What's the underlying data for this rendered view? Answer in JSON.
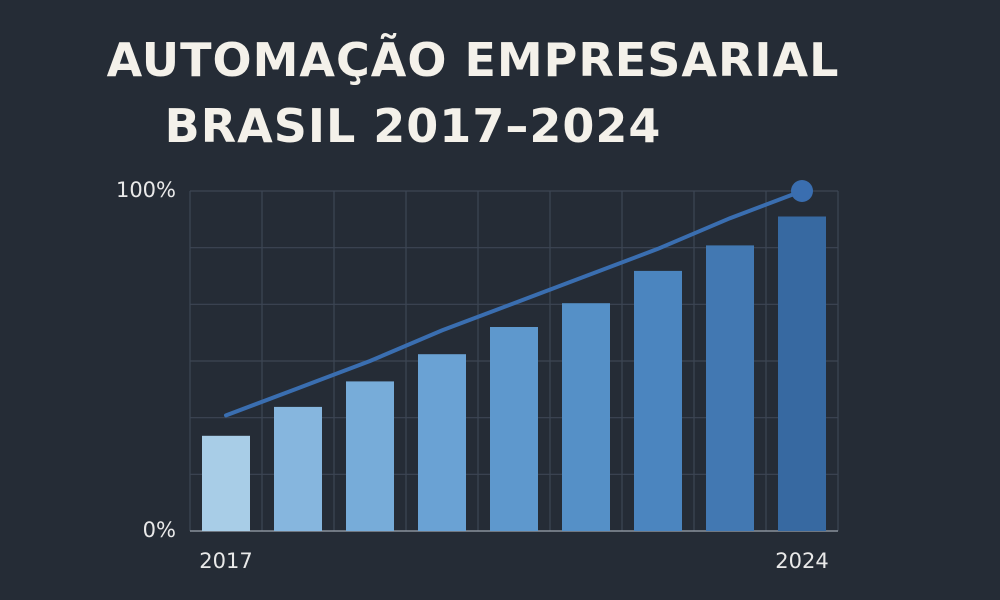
{
  "chart_data": {
    "type": "bar",
    "title": [
      "AUTOMAÇÃO EMPRESARIAL",
      "BRASIL 2017–2024"
    ],
    "categories": [
      "2017",
      null,
      null,
      null,
      null,
      null,
      null,
      null,
      "2024"
    ],
    "values": [
      28,
      36.5,
      44,
      52,
      60,
      67,
      76.5,
      84,
      92.5
    ],
    "colors": [
      "#a8cde7",
      "#86b6de",
      "#77acd9",
      "#6aa2d4",
      "#5e98cd",
      "#5590c7",
      "#4b85bf",
      "#4278b2",
      "#3769a1"
    ],
    "series": [
      {
        "type": "line",
        "color": "#3a6eb0",
        "values": [
          34,
          42,
          50,
          59,
          67,
          75,
          83,
          92,
          100
        ]
      }
    ],
    "ylim": [
      0,
      100
    ],
    "yticks": [
      {
        "value": 0,
        "label": "0%"
      },
      {
        "value": 100,
        "label": "100%"
      }
    ],
    "grid": true
  }
}
